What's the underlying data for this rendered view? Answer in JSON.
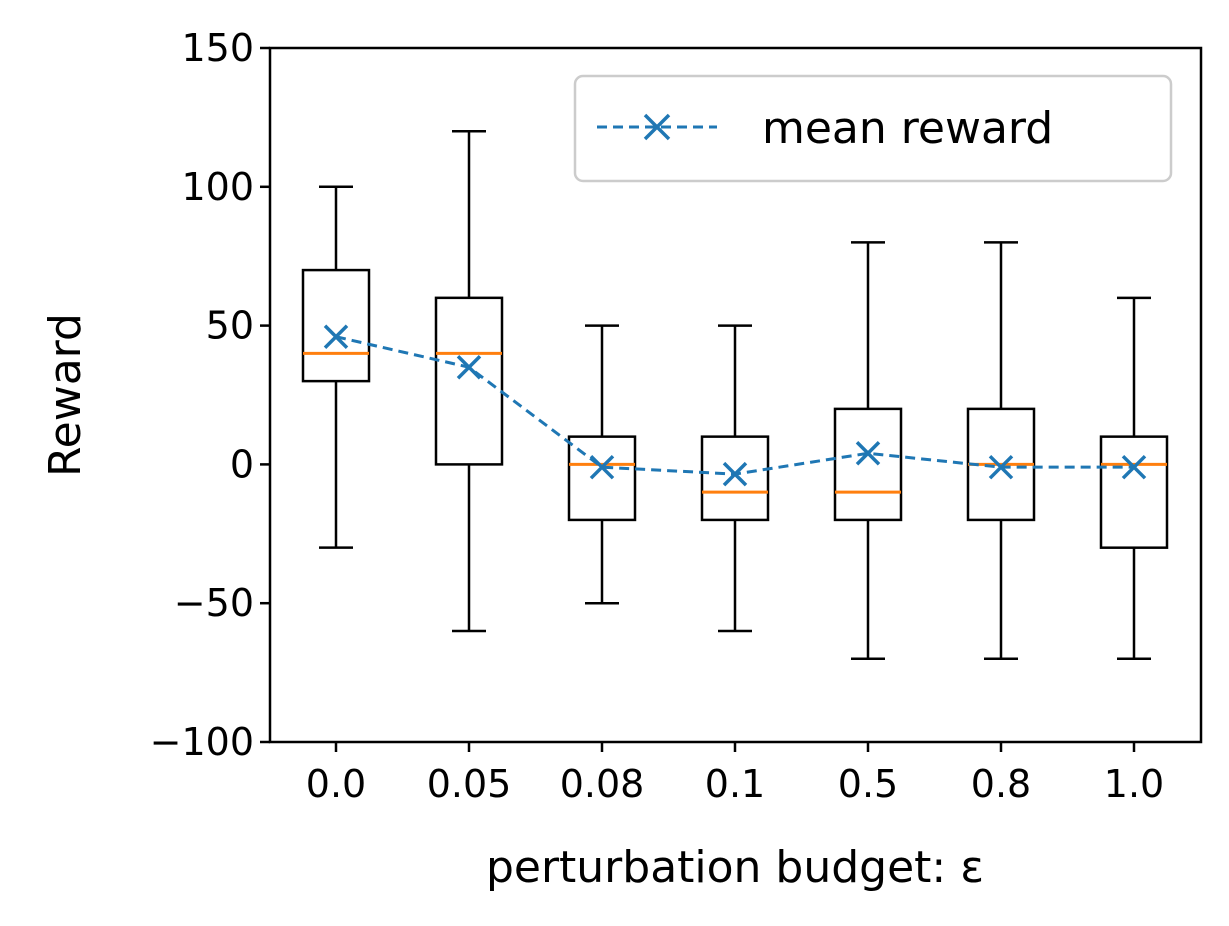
{
  "chart_data": {
    "type": "box",
    "title": "",
    "xlabel": "perturbation budget: ε",
    "ylabel": "Reward",
    "ylim": [
      -100,
      150
    ],
    "yticks": [
      -100,
      -50,
      0,
      50,
      100,
      150
    ],
    "ytick_labels": [
      "−100",
      "−50",
      "0",
      "50",
      "100",
      "150"
    ],
    "categories": [
      "0.0",
      "0.05",
      "0.08",
      "0.1",
      "0.5",
      "0.8",
      "1.0"
    ],
    "boxes": [
      {
        "whisker_low": -30,
        "q1": 30,
        "median": 40,
        "q3": 70,
        "whisker_high": 100
      },
      {
        "whisker_low": -60,
        "q1": 0,
        "median": 40,
        "q3": 60,
        "whisker_high": 120
      },
      {
        "whisker_low": -50,
        "q1": -20,
        "median": 0,
        "q3": 10,
        "whisker_high": 50
      },
      {
        "whisker_low": -60,
        "q1": -20,
        "median": -10,
        "q3": 10,
        "whisker_high": 50
      },
      {
        "whisker_low": -70,
        "q1": -20,
        "median": -10,
        "q3": 20,
        "whisker_high": 80
      },
      {
        "whisker_low": -70,
        "q1": -20,
        "median": 0,
        "q3": 20,
        "whisker_high": 80
      },
      {
        "whisker_low": -70,
        "q1": -30,
        "median": 0,
        "q3": 10,
        "whisker_high": 60
      }
    ],
    "series": [
      {
        "name": "mean reward",
        "values": [
          46,
          35,
          -1,
          -3.5,
          4,
          -1,
          -1
        ]
      }
    ],
    "legend": {
      "placement": "top-right"
    },
    "grid": false,
    "colors": {
      "box": "#000000",
      "median": "#ff7f0e",
      "mean": "#1f77b4"
    }
  }
}
